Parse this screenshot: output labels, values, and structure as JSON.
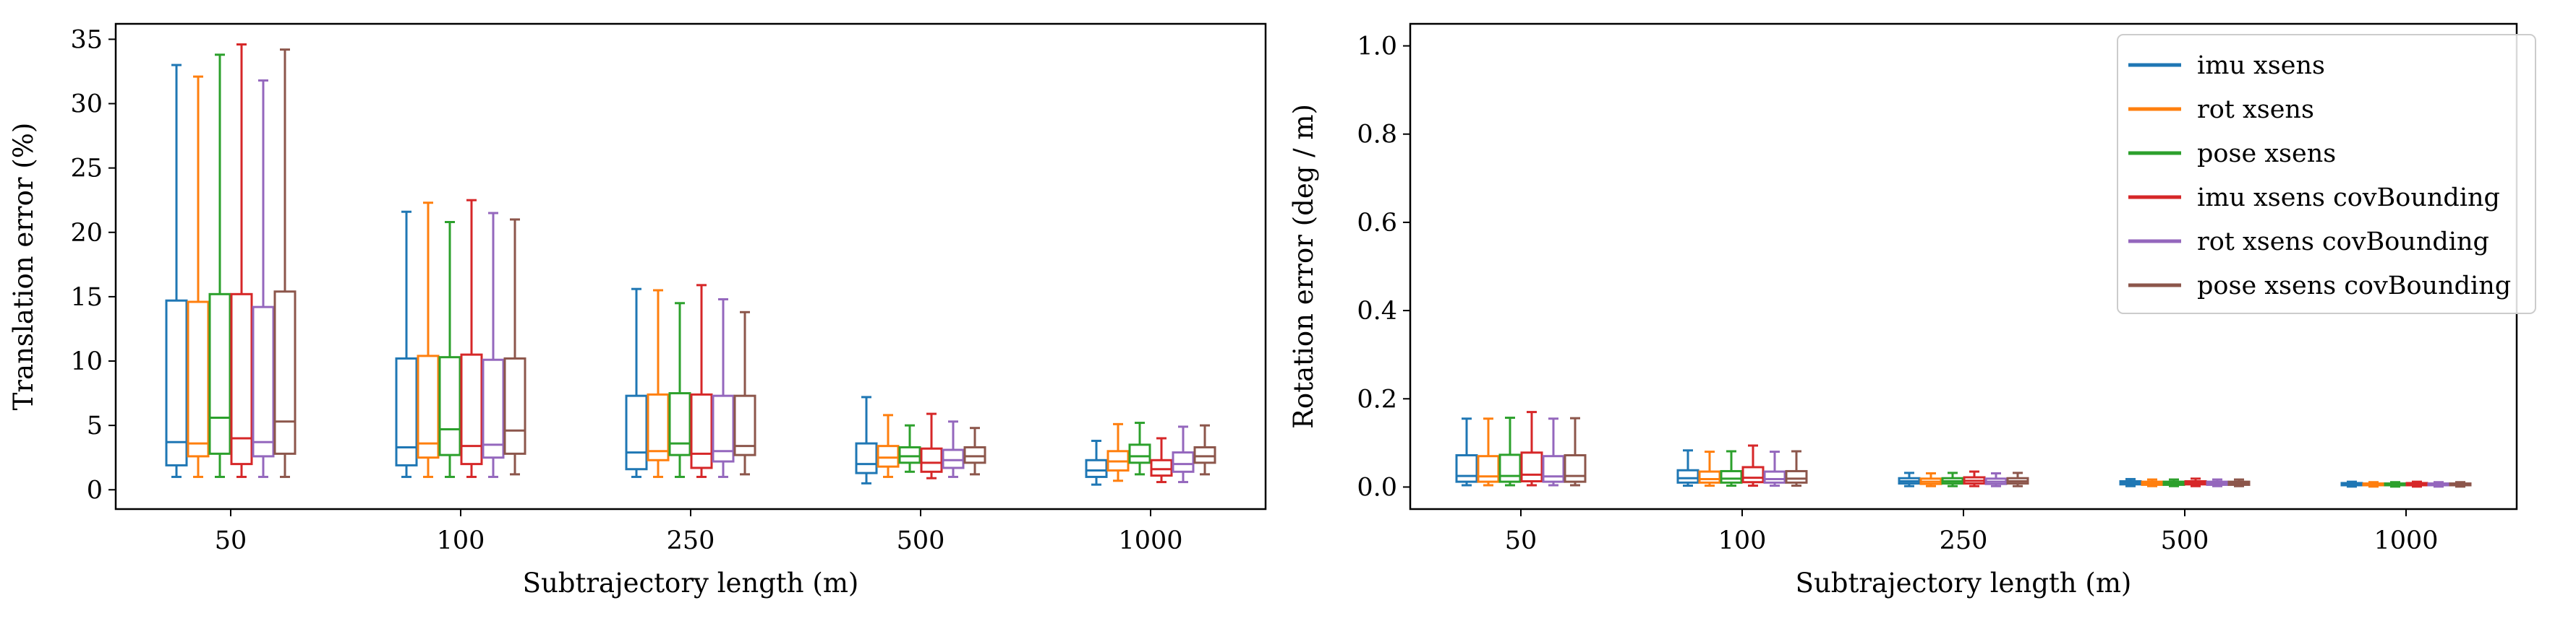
{
  "colors": {
    "imu_xsens": "#1f77b4",
    "rot_xsens": "#ff7f0e",
    "pose_xsens": "#2ca02c",
    "imu_xsens_covBounding": "#d62728",
    "rot_xsens_covBounding": "#9467bd",
    "pose_xsens_covBounding": "#8c564b"
  },
  "chart_data": [
    {
      "type": "box",
      "title": "",
      "xlabel": "Subtrajectory length (m)",
      "ylabel": "Translation error (%)",
      "ylim": [
        -1.5,
        36.2
      ],
      "yticks": [
        0,
        5,
        10,
        15,
        20,
        25,
        30,
        35
      ],
      "ytick_labels": [
        "0",
        "5",
        "10",
        "15",
        "20",
        "25",
        "30",
        "35"
      ],
      "categories": [
        "50",
        "100",
        "250",
        "500",
        "1000"
      ],
      "legend": null,
      "series": [
        {
          "name": "imu xsens",
          "color": "#1f77b4",
          "boxes": [
            {
              "whislo": 1.0,
              "q1": 1.9,
              "med": 3.7,
              "q3": 14.7,
              "whishi": 33.0
            },
            {
              "whislo": 1.0,
              "q1": 1.9,
              "med": 3.3,
              "q3": 10.2,
              "whishi": 21.6
            },
            {
              "whislo": 1.0,
              "q1": 1.6,
              "med": 2.9,
              "q3": 7.3,
              "whishi": 15.6
            },
            {
              "whislo": 0.5,
              "q1": 1.3,
              "med": 2.0,
              "q3": 3.6,
              "whishi": 7.2
            },
            {
              "whislo": 0.4,
              "q1": 1.0,
              "med": 1.5,
              "q3": 2.3,
              "whishi": 3.8
            }
          ]
        },
        {
          "name": "rot xsens",
          "color": "#ff7f0e",
          "boxes": [
            {
              "whislo": 1.0,
              "q1": 2.6,
              "med": 3.6,
              "q3": 14.6,
              "whishi": 32.1
            },
            {
              "whislo": 1.0,
              "q1": 2.5,
              "med": 3.6,
              "q3": 10.4,
              "whishi": 22.3
            },
            {
              "whislo": 1.0,
              "q1": 2.3,
              "med": 3.0,
              "q3": 7.4,
              "whishi": 15.5
            },
            {
              "whislo": 1.0,
              "q1": 1.8,
              "med": 2.5,
              "q3": 3.4,
              "whishi": 5.8
            },
            {
              "whislo": 0.7,
              "q1": 1.5,
              "med": 2.2,
              "q3": 3.0,
              "whishi": 5.1
            }
          ]
        },
        {
          "name": "pose xsens",
          "color": "#2ca02c",
          "boxes": [
            {
              "whislo": 1.0,
              "q1": 2.8,
              "med": 5.6,
              "q3": 15.2,
              "whishi": 33.8
            },
            {
              "whislo": 1.0,
              "q1": 2.7,
              "med": 4.7,
              "q3": 10.3,
              "whishi": 20.8
            },
            {
              "whislo": 1.0,
              "q1": 2.7,
              "med": 3.6,
              "q3": 7.5,
              "whishi": 14.5
            },
            {
              "whislo": 1.4,
              "q1": 2.1,
              "med": 2.6,
              "q3": 3.3,
              "whishi": 5.0
            },
            {
              "whislo": 1.2,
              "q1": 2.1,
              "med": 2.6,
              "q3": 3.5,
              "whishi": 5.2
            }
          ]
        },
        {
          "name": "imu xsens covBounding",
          "color": "#d62728",
          "boxes": [
            {
              "whislo": 1.0,
              "q1": 2.0,
              "med": 4.0,
              "q3": 15.2,
              "whishi": 34.6
            },
            {
              "whislo": 1.0,
              "q1": 2.0,
              "med": 3.4,
              "q3": 10.5,
              "whishi": 22.5
            },
            {
              "whislo": 1.0,
              "q1": 1.7,
              "med": 2.8,
              "q3": 7.4,
              "whishi": 15.9
            },
            {
              "whislo": 0.9,
              "q1": 1.4,
              "med": 2.1,
              "q3": 3.2,
              "whishi": 5.9
            },
            {
              "whislo": 0.6,
              "q1": 1.1,
              "med": 1.6,
              "q3": 2.3,
              "whishi": 4.0
            }
          ]
        },
        {
          "name": "rot xsens covBounding",
          "color": "#9467bd",
          "boxes": [
            {
              "whislo": 1.0,
              "q1": 2.6,
              "med": 3.7,
              "q3": 14.2,
              "whishi": 31.8
            },
            {
              "whislo": 1.0,
              "q1": 2.5,
              "med": 3.5,
              "q3": 10.1,
              "whishi": 21.5
            },
            {
              "whislo": 1.0,
              "q1": 2.2,
              "med": 3.0,
              "q3": 7.3,
              "whishi": 14.8
            },
            {
              "whislo": 1.0,
              "q1": 1.7,
              "med": 2.3,
              "q3": 3.1,
              "whishi": 5.3
            },
            {
              "whislo": 0.6,
              "q1": 1.4,
              "med": 2.0,
              "q3": 2.9,
              "whishi": 4.9
            }
          ]
        },
        {
          "name": "pose xsens covBounding",
          "color": "#8c564b",
          "boxes": [
            {
              "whislo": 1.0,
              "q1": 2.8,
              "med": 5.3,
              "q3": 15.4,
              "whishi": 34.2
            },
            {
              "whislo": 1.2,
              "q1": 2.8,
              "med": 4.6,
              "q3": 10.2,
              "whishi": 21.0
            },
            {
              "whislo": 1.2,
              "q1": 2.7,
              "med": 3.4,
              "q3": 7.3,
              "whishi": 13.8
            },
            {
              "whislo": 1.2,
              "q1": 2.1,
              "med": 2.6,
              "q3": 3.3,
              "whishi": 4.8
            },
            {
              "whislo": 1.2,
              "q1": 2.1,
              "med": 2.6,
              "q3": 3.3,
              "whishi": 5.0
            }
          ]
        }
      ]
    },
    {
      "type": "box",
      "title": "",
      "xlabel": "Subtrajectory length (m)",
      "ylabel": "Rotation error (deg / m)",
      "ylim": [
        -0.05,
        1.05
      ],
      "yticks": [
        0.0,
        0.2,
        0.4,
        0.6,
        0.8,
        1.0
      ],
      "ytick_labels": [
        "0.0",
        "0.2",
        "0.4",
        "0.6",
        "0.8",
        "1.0"
      ],
      "categories": [
        "50",
        "100",
        "250",
        "500",
        "1000"
      ],
      "legend": "top-right",
      "series": [
        {
          "name": "imu xsens",
          "color": "#1f77b4",
          "boxes": [
            {
              "whislo": 0.004,
              "q1": 0.012,
              "med": 0.025,
              "q3": 0.072,
              "whishi": 0.155
            },
            {
              "whislo": 0.003,
              "q1": 0.01,
              "med": 0.02,
              "q3": 0.038,
              "whishi": 0.083
            },
            {
              "whislo": 0.002,
              "q1": 0.008,
              "med": 0.013,
              "q3": 0.02,
              "whishi": 0.032
            },
            {
              "whislo": 0.002,
              "q1": 0.006,
              "med": 0.009,
              "q3": 0.013,
              "whishi": 0.018
            },
            {
              "whislo": 0.001,
              "q1": 0.004,
              "med": 0.006,
              "q3": 0.009,
              "whishi": 0.012
            }
          ]
        },
        {
          "name": "rot xsens",
          "color": "#ff7f0e",
          "boxes": [
            {
              "whislo": 0.004,
              "q1": 0.012,
              "med": 0.024,
              "q3": 0.07,
              "whishi": 0.155
            },
            {
              "whislo": 0.003,
              "q1": 0.01,
              "med": 0.018,
              "q3": 0.035,
              "whishi": 0.08
            },
            {
              "whislo": 0.002,
              "q1": 0.007,
              "med": 0.012,
              "q3": 0.019,
              "whishi": 0.031
            },
            {
              "whislo": 0.002,
              "q1": 0.005,
              "med": 0.008,
              "q3": 0.012,
              "whishi": 0.017
            },
            {
              "whislo": 0.001,
              "q1": 0.004,
              "med": 0.006,
              "q3": 0.008,
              "whishi": 0.011
            }
          ]
        },
        {
          "name": "pose xsens",
          "color": "#2ca02c",
          "boxes": [
            {
              "whislo": 0.004,
              "q1": 0.012,
              "med": 0.025,
              "q3": 0.073,
              "whishi": 0.157
            },
            {
              "whislo": 0.003,
              "q1": 0.01,
              "med": 0.019,
              "q3": 0.036,
              "whishi": 0.081
            },
            {
              "whislo": 0.002,
              "q1": 0.008,
              "med": 0.013,
              "q3": 0.02,
              "whishi": 0.032
            },
            {
              "whislo": 0.002,
              "q1": 0.005,
              "med": 0.008,
              "q3": 0.012,
              "whishi": 0.017
            },
            {
              "whislo": 0.001,
              "q1": 0.004,
              "med": 0.006,
              "q3": 0.008,
              "whishi": 0.011
            }
          ]
        },
        {
          "name": "imu xsens covBounding",
          "color": "#d62728",
          "boxes": [
            {
              "whislo": 0.004,
              "q1": 0.013,
              "med": 0.028,
              "q3": 0.078,
              "whishi": 0.17
            },
            {
              "whislo": 0.003,
              "q1": 0.011,
              "med": 0.021,
              "q3": 0.045,
              "whishi": 0.094
            },
            {
              "whislo": 0.002,
              "q1": 0.008,
              "med": 0.014,
              "q3": 0.022,
              "whishi": 0.035
            },
            {
              "whislo": 0.002,
              "q1": 0.006,
              "med": 0.009,
              "q3": 0.013,
              "whishi": 0.019
            },
            {
              "whislo": 0.001,
              "q1": 0.004,
              "med": 0.006,
              "q3": 0.009,
              "whishi": 0.012
            }
          ]
        },
        {
          "name": "rot xsens covBounding",
          "color": "#9467bd",
          "boxes": [
            {
              "whislo": 0.004,
              "q1": 0.012,
              "med": 0.024,
              "q3": 0.07,
              "whishi": 0.155
            },
            {
              "whislo": 0.003,
              "q1": 0.01,
              "med": 0.018,
              "q3": 0.035,
              "whishi": 0.08
            },
            {
              "whislo": 0.002,
              "q1": 0.007,
              "med": 0.012,
              "q3": 0.019,
              "whishi": 0.031
            },
            {
              "whislo": 0.002,
              "q1": 0.005,
              "med": 0.008,
              "q3": 0.012,
              "whishi": 0.017
            },
            {
              "whislo": 0.001,
              "q1": 0.004,
              "med": 0.006,
              "q3": 0.008,
              "whishi": 0.011
            }
          ]
        },
        {
          "name": "pose xsens covBounding",
          "color": "#8c564b",
          "boxes": [
            {
              "whislo": 0.004,
              "q1": 0.012,
              "med": 0.025,
              "q3": 0.072,
              "whishi": 0.156
            },
            {
              "whislo": 0.003,
              "q1": 0.01,
              "med": 0.019,
              "q3": 0.036,
              "whishi": 0.081
            },
            {
              "whislo": 0.002,
              "q1": 0.008,
              "med": 0.013,
              "q3": 0.02,
              "whishi": 0.032
            },
            {
              "whislo": 0.002,
              "q1": 0.005,
              "med": 0.008,
              "q3": 0.012,
              "whishi": 0.017
            },
            {
              "whislo": 0.001,
              "q1": 0.004,
              "med": 0.006,
              "q3": 0.008,
              "whishi": 0.011
            }
          ]
        }
      ]
    }
  ]
}
